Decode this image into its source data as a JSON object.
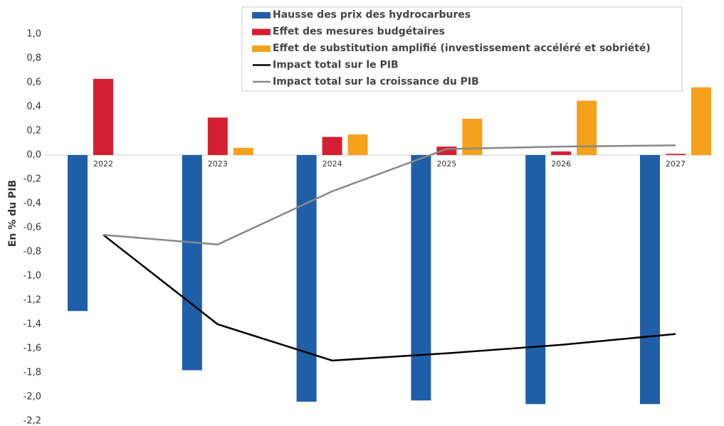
{
  "chart_data": {
    "type": "bar",
    "y_label": "En % du PIB",
    "categories": [
      "2022",
      "2023",
      "2024",
      "2025",
      "2026",
      "2027"
    ],
    "series": [
      {
        "name": "Hausse des prix des hydrocarbures",
        "type": "bar",
        "color": "#1f5fa8",
        "values": [
          -1.29,
          -1.78,
          -2.04,
          -2.03,
          -2.06,
          -2.06
        ]
      },
      {
        "name": "Effet des mesures budgétaires",
        "type": "bar",
        "color": "#d41f32",
        "values": [
          0.63,
          0.31,
          0.15,
          0.07,
          0.03,
          0.01
        ]
      },
      {
        "name": "Effet de substitution amplifié (investissement accéléré et sobriété)",
        "type": "bar",
        "color": "#f5a11c",
        "values": [
          0,
          0.06,
          0.17,
          0.3,
          0.45,
          0.56
        ]
      },
      {
        "name": "Impact total sur le PIB",
        "type": "line",
        "color": "#000000",
        "values": [
          -0.66,
          -1.4,
          -1.7,
          -1.64,
          -1.57,
          -1.48
        ]
      },
      {
        "name": "Impact total sur la croissance du PIB",
        "type": "line",
        "color": "#888888",
        "values": [
          -0.66,
          -0.74,
          -0.3,
          0.05,
          0.07,
          0.08
        ]
      }
    ],
    "ylim": [
      -2.2,
      1.0
    ],
    "yticks": [
      {
        "value": 1.0,
        "label": "1,0"
      },
      {
        "value": 0.8,
        "label": "0,8"
      },
      {
        "value": 0.6,
        "label": "0,6"
      },
      {
        "value": 0.4,
        "label": "0,4"
      },
      {
        "value": 0.2,
        "label": "0,2"
      },
      {
        "value": 0.0,
        "label": "0,0"
      },
      {
        "value": -0.2,
        "label": "-0,2"
      },
      {
        "value": -0.4,
        "label": "-0,4"
      },
      {
        "value": -0.6,
        "label": "-0,6"
      },
      {
        "value": -0.8,
        "label": "-0,8"
      },
      {
        "value": -1.0,
        "label": "-1,0"
      },
      {
        "value": -1.2,
        "label": "-1,2"
      },
      {
        "value": -1.4,
        "label": "-1,4"
      },
      {
        "value": -1.6,
        "label": "-1,6"
      },
      {
        "value": -1.8,
        "label": "-1,8"
      },
      {
        "value": -2.0,
        "label": "-2,0"
      },
      {
        "value": -2.2,
        "label": "-2,2"
      }
    ],
    "grid": false
  }
}
